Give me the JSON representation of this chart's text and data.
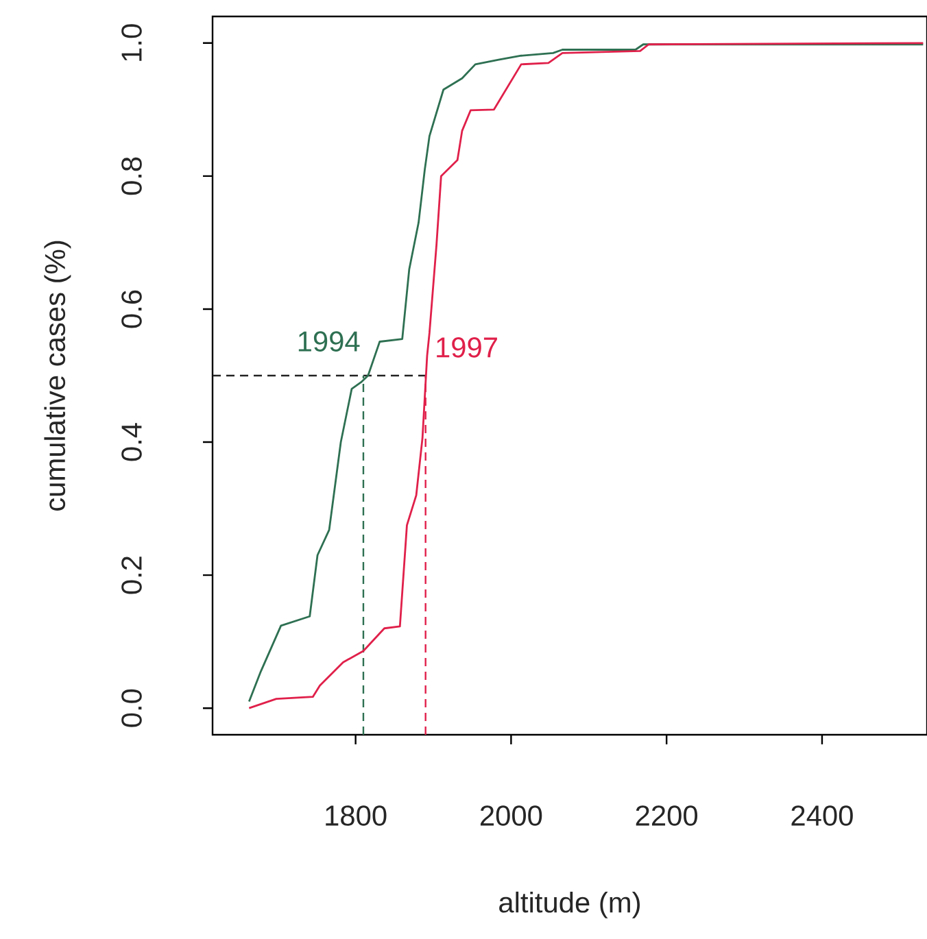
{
  "chart_data": {
    "type": "line",
    "xlabel": "altitude (m)",
    "ylabel": "cumulative cases (%)",
    "xlim": [
      1616,
      2535
    ],
    "ylim": [
      -0.04,
      1.04
    ],
    "xticks": [
      1800,
      2000,
      2200,
      2400
    ],
    "yticks": [
      {
        "value": 0,
        "label": "0.0"
      },
      {
        "value": 0.2,
        "label": "0.2"
      },
      {
        "value": 0.4,
        "label": "0.4"
      },
      {
        "value": 0.6,
        "label": "0.6"
      },
      {
        "value": 0.8,
        "label": "0.8"
      },
      {
        "value": 1.0,
        "label": "1.0"
      }
    ],
    "grid": false,
    "legend": false,
    "marker": "none",
    "line_style": "solid",
    "series": [
      {
        "name": "1994",
        "color": "#2e7052",
        "x": [
          1663,
          1678,
          1704,
          1741,
          1751,
          1766,
          1781,
          1795,
          1807,
          1816,
          1831,
          1860,
          1869,
          1881,
          1889,
          1895,
          1913,
          1937,
          1954,
          1984,
          2013,
          2054,
          2066,
          2160,
          2170,
          2530
        ],
        "values": [
          0.01,
          0.055,
          0.124,
          0.138,
          0.23,
          0.268,
          0.4,
          0.48,
          0.49,
          0.5,
          0.551,
          0.555,
          0.66,
          0.73,
          0.81,
          0.86,
          0.93,
          0.947,
          0.968,
          0.975,
          0.981,
          0.985,
          0.99,
          0.99,
          0.998,
          0.998
        ]
      },
      {
        "name": "1997",
        "color": "#e0204a",
        "x": [
          1663,
          1698,
          1745,
          1754,
          1784,
          1810,
          1837,
          1857,
          1866,
          1878,
          1886,
          1892,
          1895,
          1904,
          1910,
          1931,
          1937,
          1948,
          1978,
          2013,
          2048,
          2066,
          2166,
          2177,
          2530
        ],
        "values": [
          0.0,
          0.014,
          0.017,
          0.034,
          0.069,
          0.086,
          0.12,
          0.123,
          0.275,
          0.32,
          0.406,
          0.53,
          0.564,
          0.696,
          0.8,
          0.824,
          0.868,
          0.899,
          0.9,
          0.968,
          0.97,
          0.985,
          0.988,
          0.998,
          1.0
        ]
      }
    ],
    "ref_lines": [
      {
        "axis": "y",
        "value": 0.5,
        "color": "#222222",
        "line_style": "dashed"
      },
      {
        "axis": "x",
        "value": 1810,
        "color": "#2e7052",
        "line_style": "dashed"
      },
      {
        "axis": "x",
        "value": 1890,
        "color": "#e0204a",
        "line_style": "dashed"
      }
    ]
  }
}
